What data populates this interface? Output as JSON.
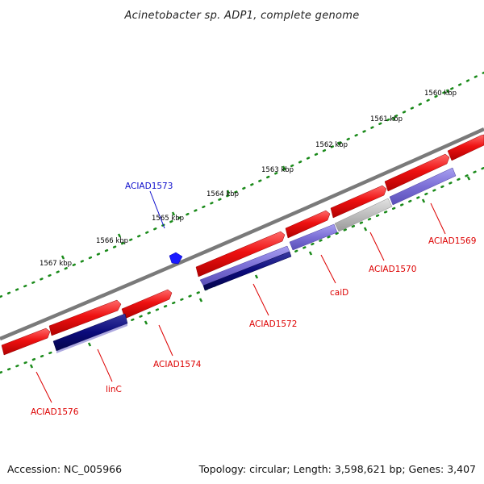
{
  "title": "Acinetobacter sp. ADP1, complete genome",
  "footer": {
    "accession": "Accession: NC_005966",
    "summary": "Topology: circular; Length: 3,598,621 bp; Genes: 3,407"
  },
  "colors": {
    "backbone": "#7a7a7a",
    "tick": "#1a8a1a",
    "gene_red": "#ee1111",
    "gene_navy": "#0a0a7a",
    "gene_lavender": "#7b6fd6",
    "gene_gray": "#bdbdbd",
    "label_red": "#dd0000",
    "label_blue": "#1010cc",
    "marker_blue": "#1a1aff"
  },
  "kbp_ticks": [
    {
      "label": "1560 kbp"
    },
    {
      "label": "1561 kbp"
    },
    {
      "label": "1562 kbp"
    },
    {
      "label": "1563 kbp"
    },
    {
      "label": "1564 kbp"
    },
    {
      "label": "1565 kbp"
    },
    {
      "label": "1566 kbp"
    },
    {
      "label": "1567 kbp"
    }
  ],
  "gene_labels": [
    {
      "text": "ACIAD1573",
      "color": "blue"
    },
    {
      "text": "ACIAD1569",
      "color": "red"
    },
    {
      "text": "ACIAD1570",
      "color": "red"
    },
    {
      "text": "caiD",
      "color": "red"
    },
    {
      "text": "ACIAD1572",
      "color": "red"
    },
    {
      "text": "ACIAD1574",
      "color": "red"
    },
    {
      "text": "linC",
      "color": "red"
    },
    {
      "text": "ACIAD1576",
      "color": "red"
    }
  ]
}
